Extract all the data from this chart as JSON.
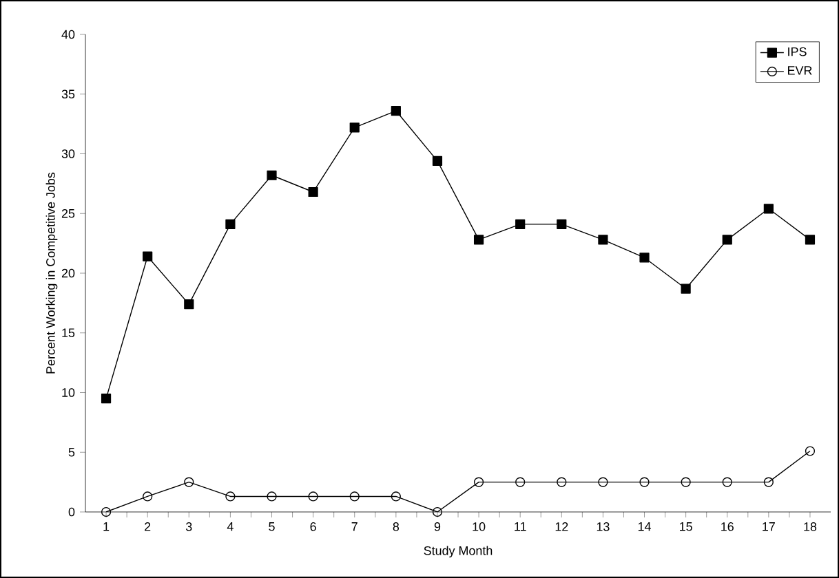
{
  "chart_data": {
    "type": "line",
    "xlabel": "Study Month",
    "ylabel": "Percent Working in Competitive Jobs",
    "categories": [
      "1",
      "2",
      "3",
      "4",
      "5",
      "6",
      "7",
      "8",
      "9",
      "10",
      "11",
      "12",
      "13",
      "14",
      "15",
      "16",
      "17",
      "18"
    ],
    "series": [
      {
        "name": "IPS",
        "color": "#000000",
        "marker": "square",
        "values": [
          9.5,
          21.4,
          17.4,
          24.1,
          28.2,
          26.8,
          32.2,
          33.6,
          29.4,
          22.8,
          24.1,
          24.1,
          22.8,
          21.3,
          18.7,
          22.8,
          25.4,
          22.8
        ]
      },
      {
        "name": "EVR",
        "color": "#000000",
        "marker": "circle",
        "values": [
          0,
          1.3,
          2.5,
          1.3,
          1.3,
          1.3,
          1.3,
          1.3,
          0,
          2.5,
          2.5,
          2.5,
          2.5,
          2.5,
          2.5,
          2.5,
          2.5,
          5.1
        ]
      }
    ],
    "ylim": [
      0,
      40
    ],
    "yticks": [
      0,
      5,
      10,
      15,
      20,
      25,
      30,
      35,
      40
    ],
    "legend": "top right",
    "grid": false,
    "line_style": "solid"
  }
}
